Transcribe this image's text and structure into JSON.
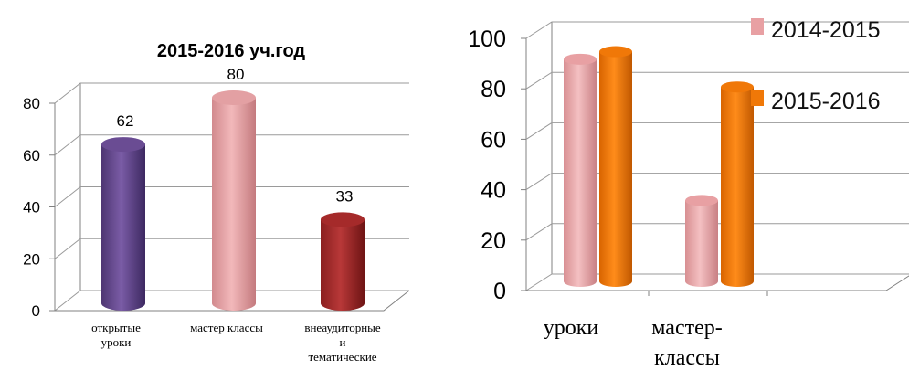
{
  "chart_data": [
    {
      "type": "bar",
      "title": "2015-2016 уч.год",
      "categories": [
        [
          "открытые",
          "уроки"
        ],
        [
          "мастер классы"
        ],
        [
          "внеаудиторные",
          "и",
          "тематические"
        ]
      ],
      "values": [
        62,
        80,
        33
      ],
      "data_labels": [
        "62",
        "80",
        "33"
      ],
      "colors": [
        "#6a4c93",
        "#e3a0a3",
        "#a52a2a"
      ],
      "ylim": [
        0,
        80
      ],
      "yticks": [
        "0",
        "20",
        "40",
        "60",
        "80"
      ],
      "grid": true,
      "style": "3d-cylinder"
    },
    {
      "type": "bar",
      "title": "",
      "categories": [
        "уроки",
        [
          "мастер-",
          "классы"
        ]
      ],
      "series": [
        {
          "name": "2014-2015",
          "values": [
            91,
            35
          ],
          "color": "#e8a0a3"
        },
        {
          "name": "2015-2016",
          "values": [
            94,
            80
          ],
          "color": "#f07808"
        }
      ],
      "ylim": [
        0,
        100
      ],
      "yticks": [
        "0",
        "20",
        "40",
        "60",
        "80",
        "100"
      ],
      "grid": true,
      "legend": "top-right",
      "style": "3d-cylinder"
    }
  ]
}
